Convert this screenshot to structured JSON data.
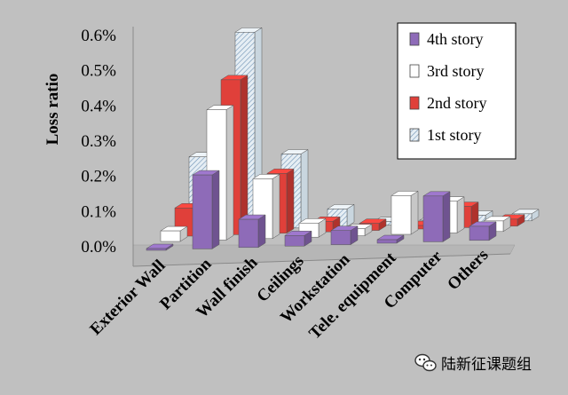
{
  "chart_data": {
    "type": "bar",
    "subtype": "3d-grouped",
    "title": "",
    "ylabel": "Loss ratio",
    "xlabel": "",
    "ylim": [
      0,
      0.6
    ],
    "yticks": [
      "0.0%",
      "0.1%",
      "0.2%",
      "0.3%",
      "0.4%",
      "0.5%",
      "0.6%"
    ],
    "categories": [
      "Exterior Wall",
      "Partition",
      "Wall finish",
      "Ceilings",
      "Workstation",
      "Tele. equipment",
      "Computer",
      "Others"
    ],
    "series": [
      {
        "name": "4th story",
        "color": "#8e6bb8",
        "pattern": "solid",
        "values": [
          0.0,
          0.21,
          0.08,
          0.03,
          0.04,
          0.01,
          0.13,
          0.04
        ]
      },
      {
        "name": "3rd story",
        "color": "#ffffff",
        "pattern": "solid",
        "values": [
          0.03,
          0.37,
          0.17,
          0.04,
          0.02,
          0.11,
          0.09,
          0.03
        ]
      },
      {
        "name": "2nd story",
        "color": "#e0403a",
        "pattern": "solid",
        "values": [
          0.08,
          0.44,
          0.17,
          0.03,
          0.02,
          0.01,
          0.06,
          0.02
        ]
      },
      {
        "name": "1st story",
        "color": "#dde8ef",
        "pattern": "hatched",
        "values": [
          0.21,
          0.56,
          0.21,
          0.05,
          0.01,
          0.01,
          0.02,
          0.02
        ]
      }
    ],
    "legend": "top-right",
    "grid": false
  },
  "watermark": {
    "icon": "wechat-icon",
    "text": "陆新征课题组"
  }
}
